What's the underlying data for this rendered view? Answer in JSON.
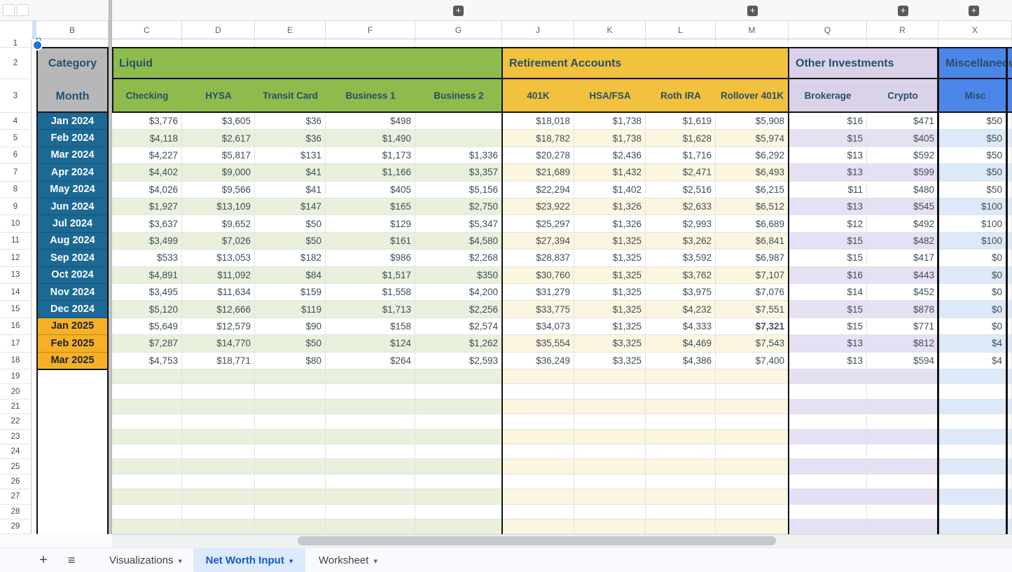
{
  "column_letters": [
    "B",
    "C",
    "D",
    "E",
    "F",
    "G",
    "J",
    "K",
    "L",
    "M",
    "Q",
    "R",
    "X"
  ],
  "row_headers": {
    "partial_first": "1",
    "numbers": [
      "2",
      "3",
      "4",
      "5",
      "6",
      "7",
      "8",
      "9",
      "10",
      "11",
      "12",
      "13",
      "14",
      "15",
      "16",
      "17",
      "18",
      "19",
      "20",
      "21",
      "22",
      "23",
      "24",
      "25",
      "26",
      "27",
      "28",
      "29"
    ]
  },
  "corner_header": {
    "top": "Category",
    "bottom": "Month"
  },
  "groups": [
    {
      "title": "Liquid",
      "columns": [
        "Checking",
        "HYSA",
        "Transit Card",
        "Business 1",
        "Business 2"
      ]
    },
    {
      "title": "Retirement Accounts",
      "columns": [
        "401K",
        "HSA/FSA",
        "Roth IRA",
        "Rollover 401K"
      ]
    },
    {
      "title": "Other Investments",
      "columns": [
        "Brokerage",
        "Crypto"
      ]
    },
    {
      "title": "Miscellaneous",
      "columns": [
        "Misc"
      ]
    }
  ],
  "rows": [
    {
      "month": "Jan 2024",
      "era": "2024",
      "values": [
        "$3,776",
        "$3,605",
        "$36",
        "$498",
        "",
        "$18,018",
        "$1,738",
        "$1,619",
        "$5,908",
        "$16",
        "$471",
        "$50"
      ]
    },
    {
      "month": "Feb 2024",
      "era": "2024",
      "values": [
        "$4,118",
        "$2,617",
        "$36",
        "$1,490",
        "",
        "$18,782",
        "$1,738",
        "$1,628",
        "$5,974",
        "$15",
        "$405",
        "$50"
      ]
    },
    {
      "month": "Mar 2024",
      "era": "2024",
      "values": [
        "$4,227",
        "$5,817",
        "$131",
        "$1,173",
        "$1,336",
        "$20,278",
        "$2,436",
        "$1,716",
        "$6,292",
        "$13",
        "$592",
        "$50"
      ]
    },
    {
      "month": "Apr 2024",
      "era": "2024",
      "values": [
        "$4,402",
        "$9,000",
        "$41",
        "$1,166",
        "$3,357",
        "$21,689",
        "$1,432",
        "$2,471",
        "$6,493",
        "$13",
        "$599",
        "$50"
      ]
    },
    {
      "month": "May 2024",
      "era": "2024",
      "values": [
        "$4,026",
        "$9,566",
        "$41",
        "$405",
        "$5,156",
        "$22,294",
        "$1,402",
        "$2,516",
        "$6,215",
        "$11",
        "$480",
        "$50"
      ]
    },
    {
      "month": "Jun 2024",
      "era": "2024",
      "values": [
        "$1,927",
        "$13,109",
        "$147",
        "$165",
        "$2,750",
        "$23,922",
        "$1,326",
        "$2,633",
        "$6,512",
        "$13",
        "$545",
        "$100"
      ]
    },
    {
      "month": "Jul 2024",
      "era": "2024",
      "values": [
        "$3,637",
        "$9,652",
        "$50",
        "$129",
        "$5,347",
        "$25,297",
        "$1,326",
        "$2,993",
        "$6,689",
        "$12",
        "$492",
        "$100"
      ]
    },
    {
      "month": "Aug 2024",
      "era": "2024",
      "values": [
        "$3,499",
        "$7,026",
        "$50",
        "$161",
        "$4,580",
        "$27,394",
        "$1,325",
        "$3,262",
        "$6,841",
        "$15",
        "$482",
        "$100"
      ]
    },
    {
      "month": "Sep 2024",
      "era": "2024",
      "values": [
        "$533",
        "$13,053",
        "$182",
        "$986",
        "$2,268",
        "$28,837",
        "$1,325",
        "$3,592",
        "$6,987",
        "$15",
        "$417",
        "$0"
      ]
    },
    {
      "month": "Oct 2024",
      "era": "2024",
      "values": [
        "$4,891",
        "$11,092",
        "$84",
        "$1,517",
        "$350",
        "$30,760",
        "$1,325",
        "$3,762",
        "$7,107",
        "$16",
        "$443",
        "$0"
      ]
    },
    {
      "month": "Nov 2024",
      "era": "2024",
      "values": [
        "$3,495",
        "$11,634",
        "$159",
        "$1,558",
        "$4,200",
        "$31,279",
        "$1,325",
        "$3,975",
        "$7,076",
        "$14",
        "$452",
        "$0"
      ]
    },
    {
      "month": "Dec 2024",
      "era": "2024",
      "values": [
        "$5,120",
        "$12,666",
        "$119",
        "$1,713",
        "$2,256",
        "$33,775",
        "$1,325",
        "$4,232",
        "$7,551",
        "$15",
        "$878",
        "$0"
      ]
    },
    {
      "month": "Jan 2025",
      "era": "2025",
      "values": [
        "$5,649",
        "$12,579",
        "$90",
        "$158",
        "$2,574",
        "$34,073",
        "$1,325",
        "$4,333",
        "$7,321",
        "$15",
        "$771",
        "$0"
      ],
      "bold": 8
    },
    {
      "month": "Feb 2025",
      "era": "2025",
      "values": [
        "$7,287",
        "$14,770",
        "$50",
        "$124",
        "$1,262",
        "$35,554",
        "$3,325",
        "$4,469",
        "$7,543",
        "$13",
        "$812",
        "$4"
      ]
    },
    {
      "month": "Mar 2025",
      "era": "2025",
      "values": [
        "$4,753",
        "$18,771",
        "$80",
        "$264",
        "$2,593",
        "$36,249",
        "$3,325",
        "$4,386",
        "$7,400",
        "$13",
        "$594",
        "$4"
      ]
    }
  ],
  "empty_row_count": 11,
  "tabs": {
    "items": [
      {
        "label": "Visualizations",
        "active": false
      },
      {
        "label": "Net Worth Input",
        "active": true
      },
      {
        "label": "Worksheet",
        "active": false
      }
    ]
  },
  "ui": {
    "expand_glyph": "+",
    "add_sheet_glyph": "+",
    "all_sheets_glyph": "≡",
    "dropdown_glyph": "▾"
  },
  "colors": {
    "liquid_green": "#8dbc4d",
    "retirement_yellow": "#f2c13d",
    "other_lavender": "#d9d2e9",
    "misc_blue": "#4d86e9",
    "category_gray": "#b7b7b7",
    "month_2024_teal": "#1b6994",
    "month_2025_amber": "#f7b026",
    "band_liquid": "#e9f0dc",
    "band_retirement": "#fcf5df",
    "band_other": "#e5e0f4",
    "band_misc": "#dce9f8",
    "header_text": "#26506a",
    "active_tab_blue": "#1557d0",
    "selection_blue": "#1a73e8"
  }
}
